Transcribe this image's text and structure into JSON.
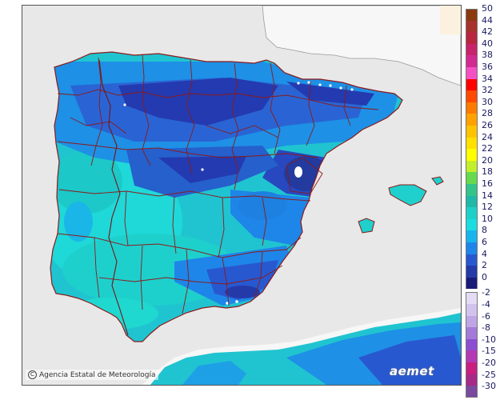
{
  "map": {
    "credit_text": "Agencia Estatal de Meteorología",
    "brand_text": "aemet",
    "colors": {
      "sea": "#e8e8e8",
      "france": "#f7f7f7",
      "africa": "#f7f7f7",
      "boundaries": "#8b1a1a"
    }
  },
  "legend": {
    "positive": [
      {
        "label": "50",
        "color": "#8b3a0f"
      },
      {
        "label": "44",
        "color": "#a8322c"
      },
      {
        "label": "42",
        "color": "#b8273f"
      },
      {
        "label": "40",
        "color": "#c8236b"
      },
      {
        "label": "38",
        "color": "#d32a92"
      },
      {
        "label": "36",
        "color": "#f54fc4"
      },
      {
        "label": "34",
        "color": "#ff0000"
      },
      {
        "label": "32",
        "color": "#ff4a00"
      },
      {
        "label": "30",
        "color": "#ff7a00"
      },
      {
        "label": "28",
        "color": "#ffa200"
      },
      {
        "label": "26",
        "color": "#ffc400"
      },
      {
        "label": "24",
        "color": "#ffe000"
      },
      {
        "label": "22",
        "color": "#ffff00"
      },
      {
        "label": "20",
        "color": "#c2ee2a"
      },
      {
        "label": "18",
        "color": "#66d94c"
      },
      {
        "label": "16",
        "color": "#34c48a"
      },
      {
        "label": "14",
        "color": "#20b8a8"
      },
      {
        "label": "12",
        "color": "#1fd0c8"
      },
      {
        "label": "10",
        "color": "#19dde0"
      },
      {
        "label": "8",
        "color": "#18b4ec"
      },
      {
        "label": "6",
        "color": "#1e86e8"
      },
      {
        "label": "4",
        "color": "#2858d0"
      },
      {
        "label": "2",
        "color": "#243aa8"
      },
      {
        "label": "0",
        "color": "#1a1a78"
      }
    ],
    "negative": [
      {
        "label": "-2",
        "color": "#e4dcf5"
      },
      {
        "label": "-4",
        "color": "#d2c3ee"
      },
      {
        "label": "-6",
        "color": "#bea6e6"
      },
      {
        "label": "-8",
        "color": "#a47ad9"
      },
      {
        "label": "-10",
        "color": "#8c4fd2"
      },
      {
        "label": "-15",
        "color": "#b43ab3"
      },
      {
        "label": "-20",
        "color": "#c8207f"
      },
      {
        "label": "-25",
        "color": "#a82a86"
      },
      {
        "label": "-30",
        "color": "#7a4a9e"
      }
    ]
  }
}
